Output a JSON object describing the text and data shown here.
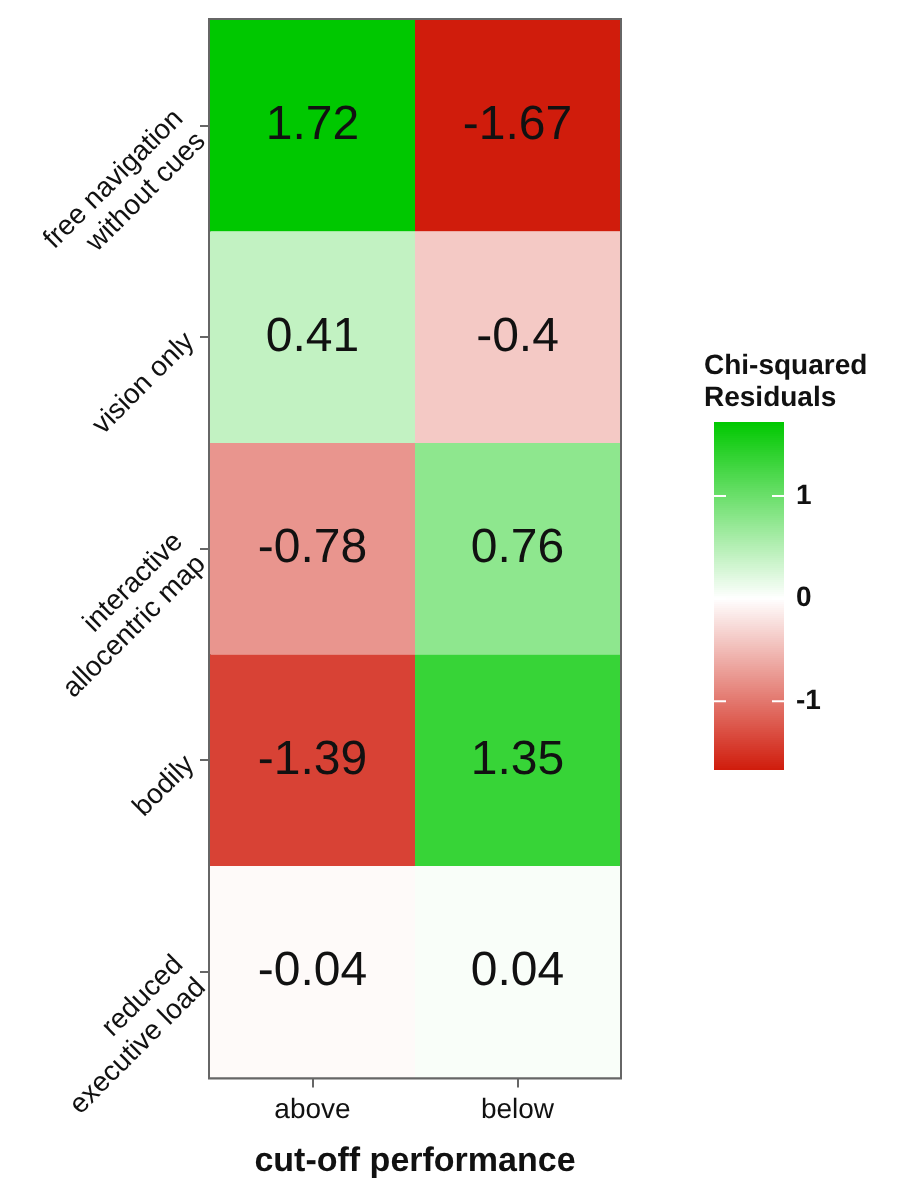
{
  "chart_data": {
    "type": "heatmap",
    "xlabel": "cut-off performance",
    "clabel": "Chi-squared Residuals",
    "categories": [
      "above",
      "below"
    ],
    "y_categories": [
      "free navigation without cues",
      "vision only",
      "interactive allocentric map",
      "bodily",
      "reduced executive load"
    ],
    "cells": [
      [
        1.72,
        -1.67
      ],
      [
        0.41,
        -0.4
      ],
      [
        -0.78,
        0.76
      ],
      [
        -1.39,
        1.35
      ],
      [
        -0.04,
        0.04
      ]
    ],
    "data_labels": true,
    "clim": [
      -1.67,
      1.72
    ],
    "cticks": [
      -1,
      0,
      1
    ]
  }
}
